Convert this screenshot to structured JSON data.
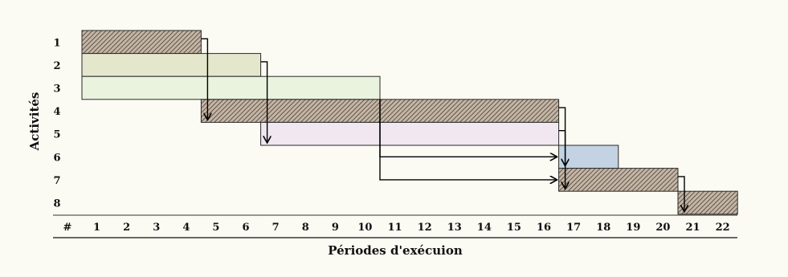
{
  "chart_data": {
    "type": "gantt",
    "xlabel": "Périodes d'exécuion",
    "ylabel": "Activités",
    "corner_label": "#",
    "periods": [
      "1",
      "2",
      "3",
      "4",
      "5",
      "6",
      "7",
      "8",
      "9",
      "10",
      "11",
      "12",
      "13",
      "14",
      "15",
      "16",
      "17",
      "18",
      "19",
      "20",
      "21",
      "22"
    ],
    "activities": [
      {
        "label": "1",
        "start": 1,
        "end": 4,
        "fill": "hatched"
      },
      {
        "label": "2",
        "start": 1,
        "end": 6,
        "fill": "#dfe3c4"
      },
      {
        "label": "3",
        "start": 1,
        "end": 10,
        "fill": "#e5f1d9"
      },
      {
        "label": "4",
        "start": 5,
        "end": 16,
        "fill": "hatched"
      },
      {
        "label": "5",
        "start": 7,
        "end": 16,
        "fill": "#ede3ef"
      },
      {
        "label": "6",
        "start": 17,
        "end": 18,
        "fill": "#b9cbe0"
      },
      {
        "label": "7",
        "start": 17,
        "end": 20,
        "fill": "hatched"
      },
      {
        "label": "8",
        "start": 21,
        "end": 22,
        "fill": "hatched"
      }
    ],
    "dependencies": [
      {
        "from": "1",
        "to": "4"
      },
      {
        "from": "2",
        "to": "5"
      },
      {
        "from": "3",
        "to": "6"
      },
      {
        "from": "3",
        "to": "7"
      },
      {
        "from": "4",
        "to": "6"
      },
      {
        "from": "5",
        "to": "7"
      },
      {
        "from": "7",
        "to": "8"
      }
    ],
    "colors": {
      "hatch_line": "#4a3b30",
      "hatch_bg": "#c3b6a6",
      "outline": "#2a2a2a"
    }
  }
}
